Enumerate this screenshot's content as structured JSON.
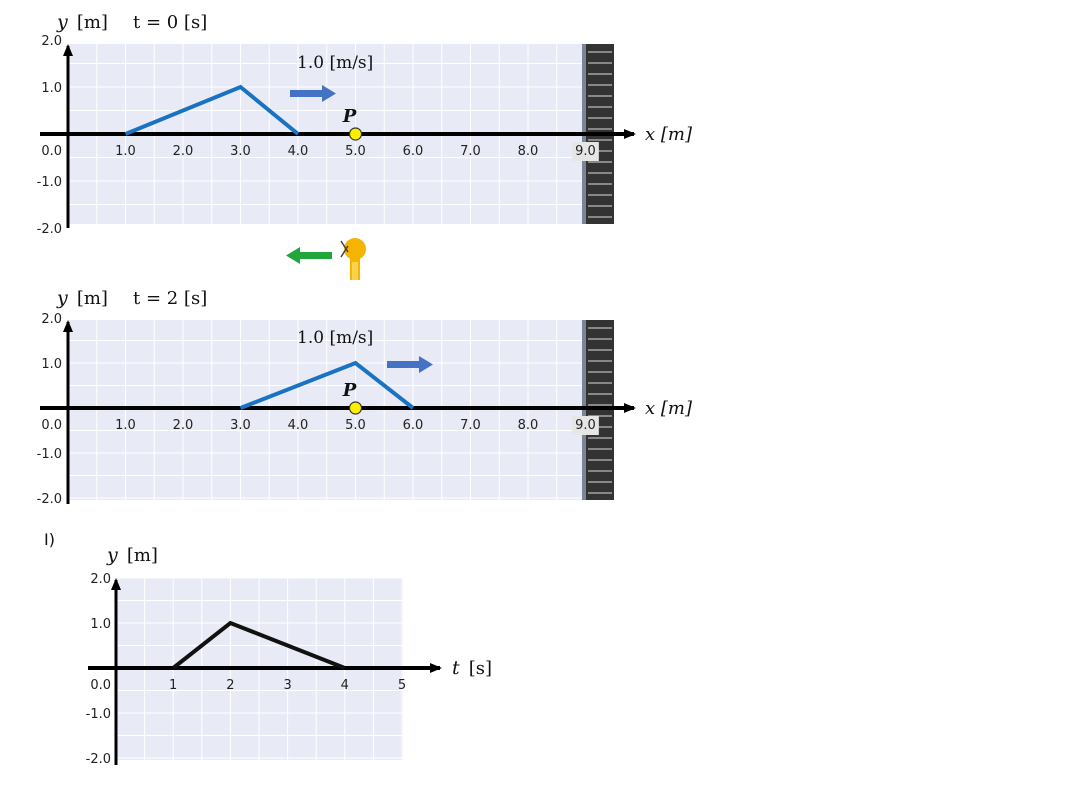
{
  "panel_top": {
    "y_axis_label_var": "y",
    "y_axis_label_unit": "[m]",
    "time_label": "t = 0 [s]",
    "speed_label": "1.0 [m/s]",
    "point_label": "P",
    "x_axis_label": "x [m]",
    "y_ticks": [
      "2.0",
      "1.0",
      "0.0",
      "-1.0",
      "-2.0"
    ],
    "x_ticks": [
      "1.0",
      "2.0",
      "3.0",
      "4.0",
      "5.0",
      "6.0",
      "7.0",
      "8.0",
      "9.0"
    ],
    "pulse": [
      [
        1.0,
        0.0
      ],
      [
        3.0,
        1.0
      ],
      [
        4.0,
        0.0
      ]
    ],
    "point_x": 5.0,
    "arrow_direction": "right"
  },
  "panel_bottom": {
    "y_axis_label_var": "y",
    "y_axis_label_unit": "[m]",
    "time_label": "t = 2 [s]",
    "speed_label": "1.0 [m/s]",
    "point_label": "P",
    "x_axis_label": "x [m]",
    "y_ticks": [
      "2.0",
      "1.0",
      "0.0",
      "-1.0",
      "-2.0"
    ],
    "x_ticks": [
      "1.0",
      "2.0",
      "3.0",
      "4.0",
      "5.0",
      "6.0",
      "7.0",
      "8.0",
      "9.0"
    ],
    "pulse": [
      [
        3.0,
        0.0
      ],
      [
        5.0,
        1.0
      ],
      [
        6.0,
        0.0
      ]
    ],
    "point_x": 5.0,
    "arrow_direction": "right"
  },
  "middle_marker": {
    "arrow_direction": "left",
    "arrow_color": "#22a53a",
    "icon": "observer-lamp-icon"
  },
  "question": {
    "number": "Ⅰ)",
    "y_axis_label_var": "y",
    "y_axis_label_unit": "[m]",
    "t_axis_label_var": "t",
    "t_axis_label_unit": "[s]",
    "y_ticks": [
      "2.0",
      "1.0",
      "0.0",
      "-1.0",
      "-2.0"
    ],
    "t_ticks": [
      "1",
      "2",
      "3",
      "4",
      "5"
    ],
    "graph": [
      [
        1,
        0.0
      ],
      [
        2,
        1.0
      ],
      [
        4,
        0.0
      ]
    ]
  },
  "colors": {
    "grid_bg": "#e8ebf5",
    "grid_line": "#ffffff",
    "pulse": "#1a73c2",
    "arrow_blue": "#4472c4",
    "point_fill": "#ffee00",
    "wall": "#333333",
    "graph_line": "#111111"
  }
}
